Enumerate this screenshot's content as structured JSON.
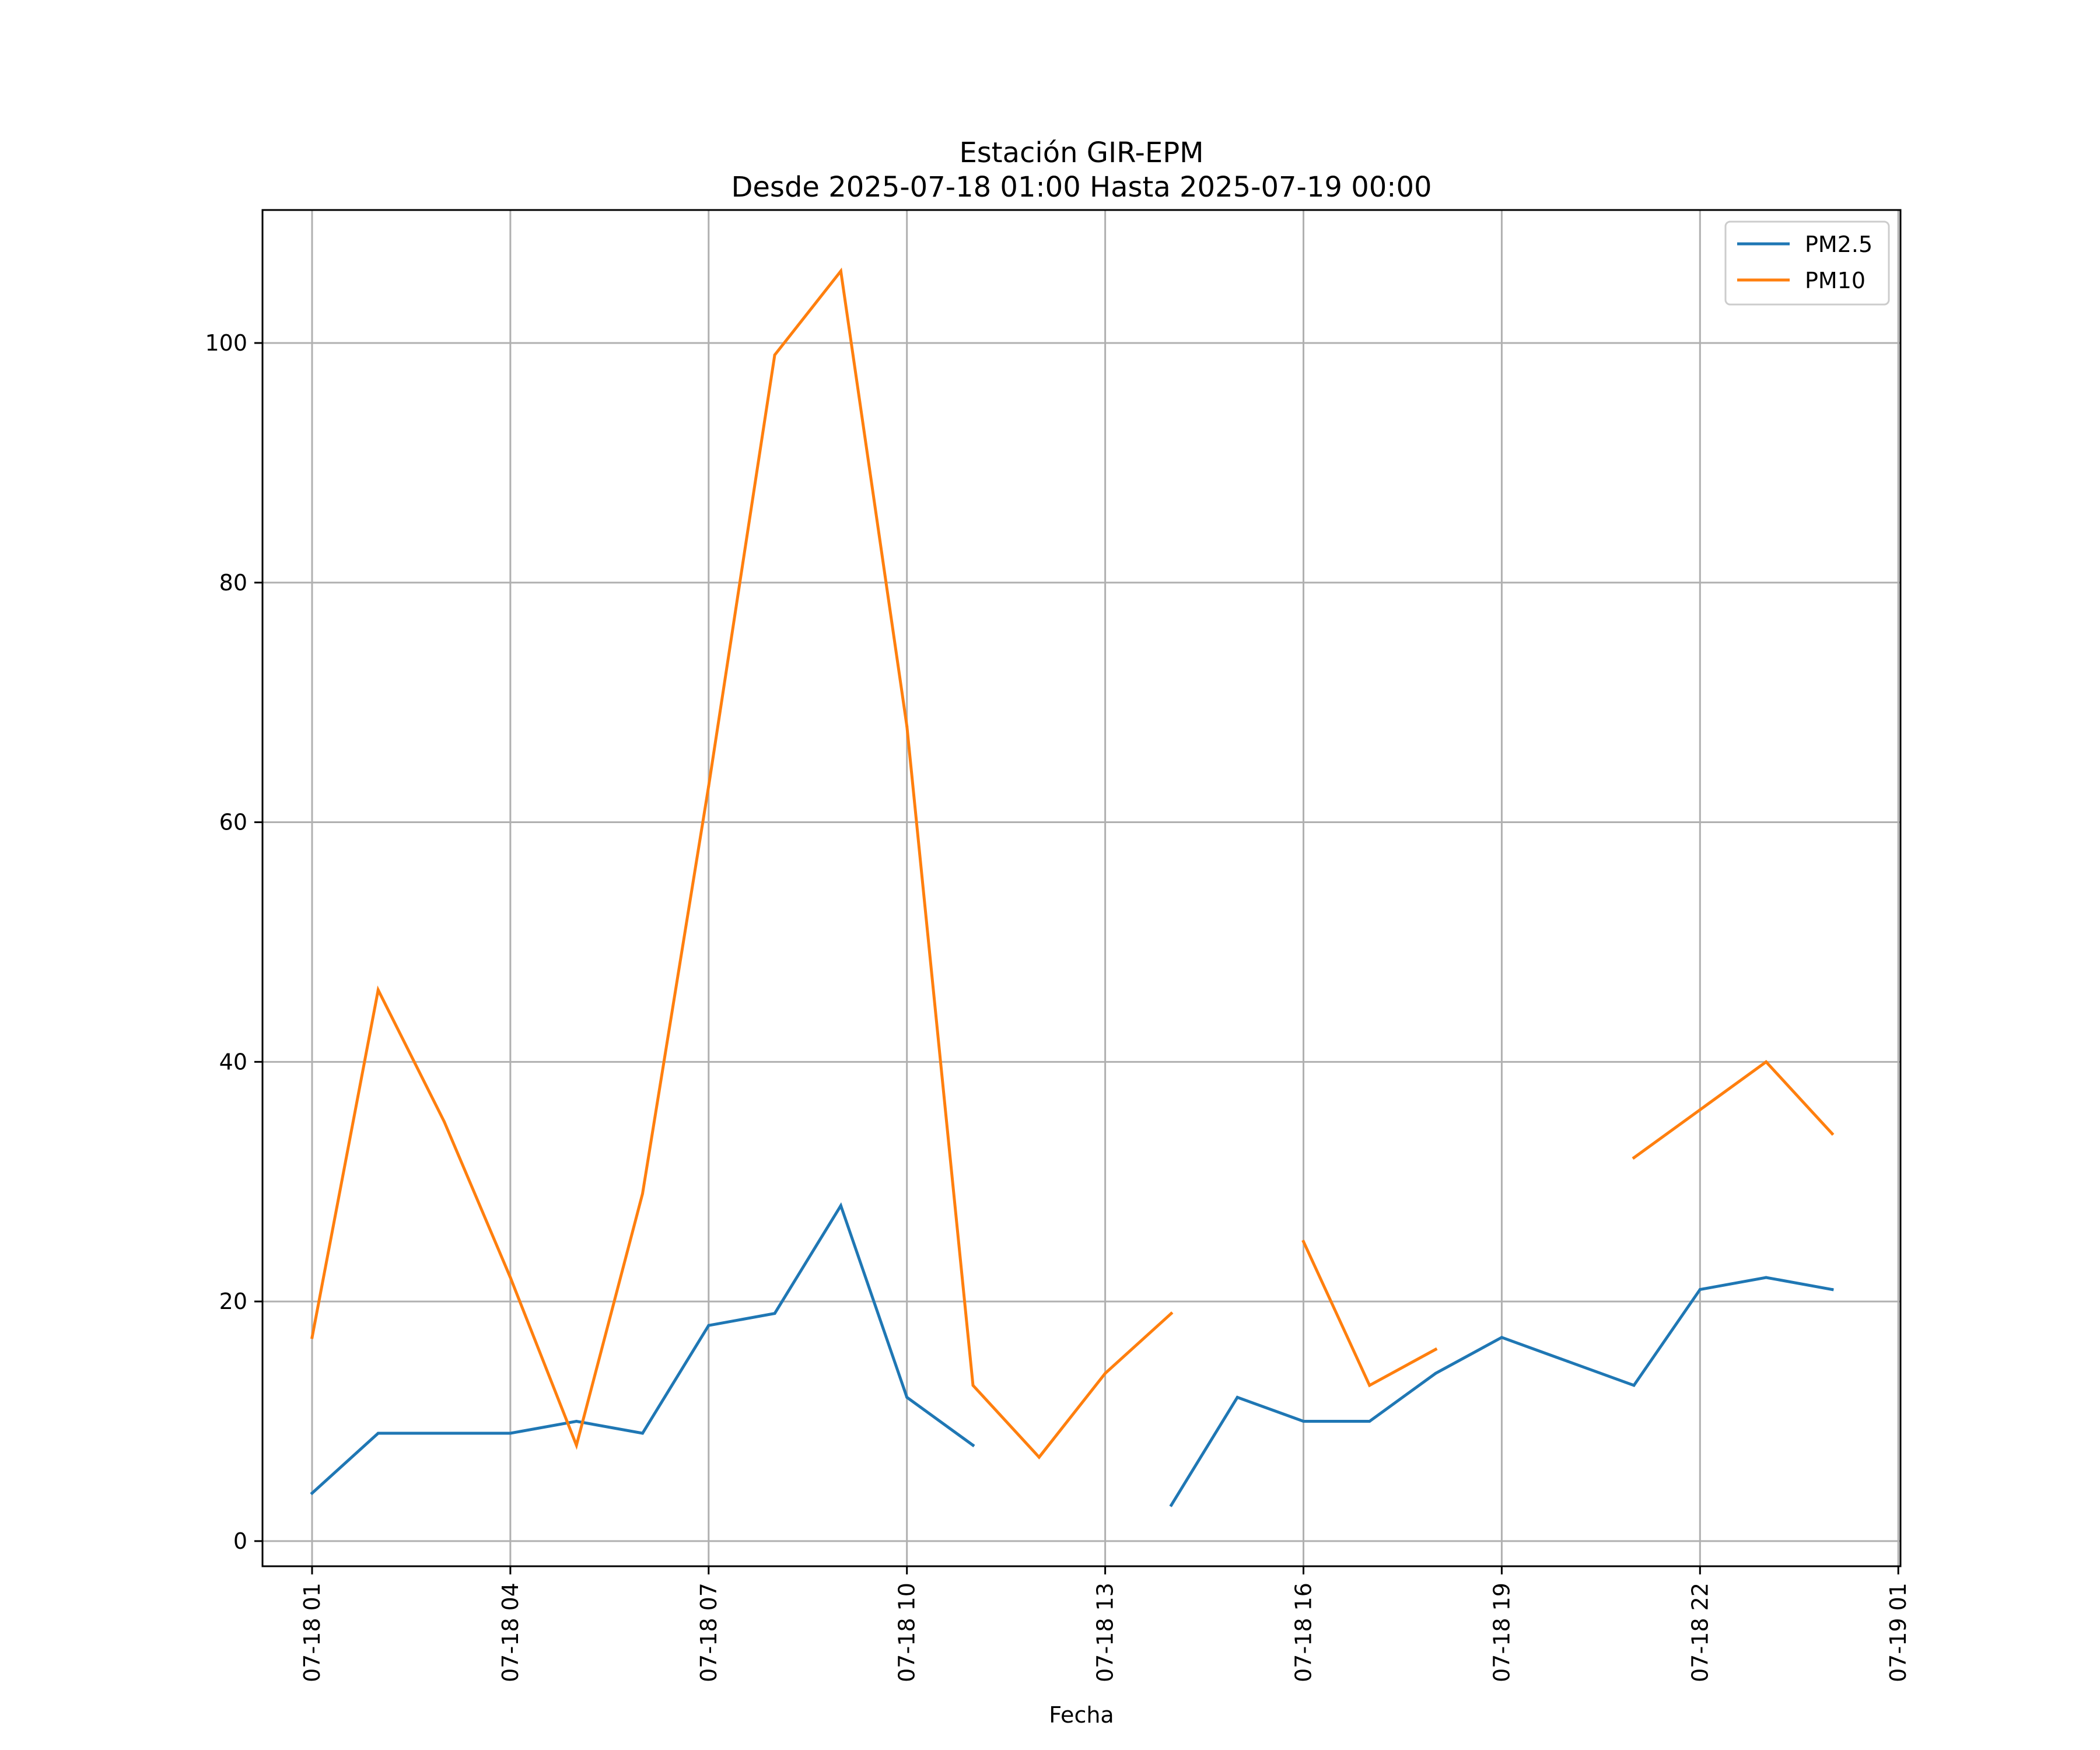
{
  "chart_data": {
    "type": "line",
    "title": "Estación GIR-EPM",
    "subtitle": "Desde 2025-07-18 01:00 Hasta 2025-07-19 00:00",
    "xlabel": "Fecha",
    "ylabel": "",
    "x": [
      "2025-07-18 01:00",
      "2025-07-18 02:00",
      "2025-07-18 03:00",
      "2025-07-18 04:00",
      "2025-07-18 05:00",
      "2025-07-18 06:00",
      "2025-07-18 07:00",
      "2025-07-18 08:00",
      "2025-07-18 09:00",
      "2025-07-18 10:00",
      "2025-07-18 11:00",
      "2025-07-18 12:00",
      "2025-07-18 13:00",
      "2025-07-18 14:00",
      "2025-07-18 15:00",
      "2025-07-18 16:00",
      "2025-07-18 17:00",
      "2025-07-18 18:00",
      "2025-07-18 19:00",
      "2025-07-18 20:00",
      "2025-07-18 21:00",
      "2025-07-18 22:00",
      "2025-07-18 23:00",
      "2025-07-19 00:00"
    ],
    "series": [
      {
        "name": "PM2.5",
        "color": "#1f77b4",
        "values": [
          4,
          9,
          9,
          9,
          10,
          9,
          18,
          19,
          28,
          12,
          8,
          null,
          null,
          3,
          12,
          10,
          10,
          14,
          17,
          15,
          13,
          21,
          22,
          21
        ]
      },
      {
        "name": "PM10",
        "color": "#ff7f0e",
        "values": [
          17,
          46,
          35,
          22,
          8,
          29,
          63,
          99,
          106,
          68,
          13,
          7,
          14,
          19,
          null,
          25,
          13,
          16,
          null,
          null,
          32,
          36,
          40,
          34
        ]
      }
    ],
    "xticks": [
      "07-18 01",
      "07-18 04",
      "07-18 07",
      "07-18 10",
      "07-18 13",
      "07-18 16",
      "07-18 19",
      "07-18 22",
      "07-19 01"
    ],
    "yticks": [
      0,
      20,
      40,
      60,
      80,
      100
    ],
    "xlim": [
      "2025-07-18 00:15",
      "2025-07-19 01:02"
    ],
    "ylim": [
      -2.1,
      111.1
    ],
    "grid": true,
    "legend": "top-right"
  }
}
